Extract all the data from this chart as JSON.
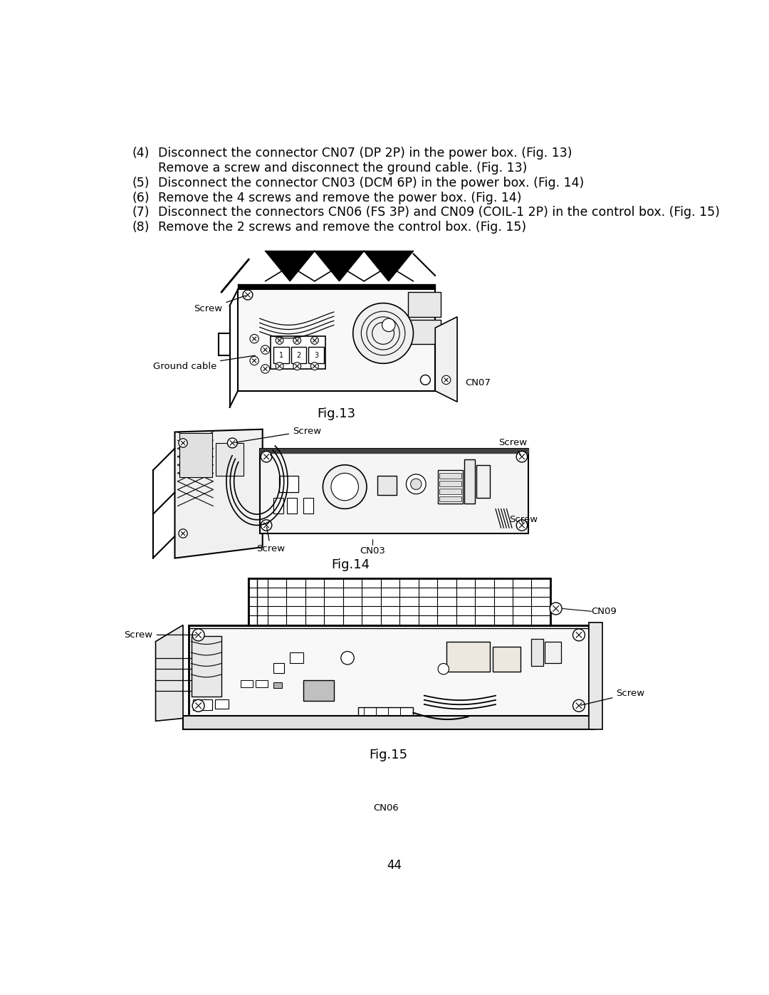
{
  "background_color": "#ffffff",
  "page_number": "44",
  "instructions": [
    [
      "(4)",
      "Disconnect the connector CN07 (DP 2P) in the power box. (Fig. 13)"
    ],
    [
      "",
      "Remove a screw and disconnect the ground cable. (Fig. 13)"
    ],
    [
      "(5)",
      "Disconnect the connector CN03 (DCM 6P) in the power box. (Fig. 14)"
    ],
    [
      "(6)",
      "Remove the 4 screws and remove the power box. (Fig. 14)"
    ],
    [
      "(7)",
      "Disconnect the connectors CN06 (FS 3P) and CN09 (COIL-1 2P) in the control box. (Fig. 15)"
    ],
    [
      "(8)",
      "Remove the 2 screws and remove the control box. (Fig. 15)"
    ]
  ],
  "text_color": "#000000",
  "line_color": "#000000",
  "font_size_body": 12.5,
  "font_size_caption": 13,
  "font_size_label": 9.5,
  "font_size_page": 12,
  "fig13_caption": "Fig.13",
  "fig14_caption": "Fig.14",
  "fig15_caption": "Fig.15"
}
